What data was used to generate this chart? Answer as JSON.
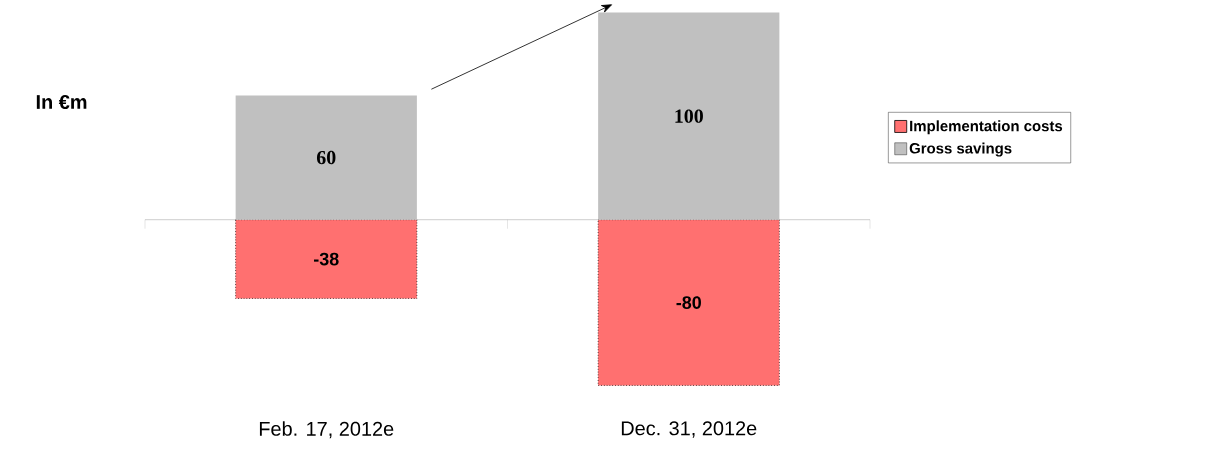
{
  "chart_data": {
    "type": "bar",
    "annotations": [
      "In €m"
    ],
    "categories": [
      "Feb. 17, 2012e",
      "Dec. 31, 2012e"
    ],
    "stacked": true,
    "data_labels": true,
    "legend": "right",
    "series": [
      {
        "name": "Implementation costs",
        "color": "#ff7070",
        "values": [
          -38,
          -80
        ]
      },
      {
        "name": "Gross savings",
        "color": "#c0c0c0",
        "values": [
          60,
          100
        ]
      }
    ]
  }
}
